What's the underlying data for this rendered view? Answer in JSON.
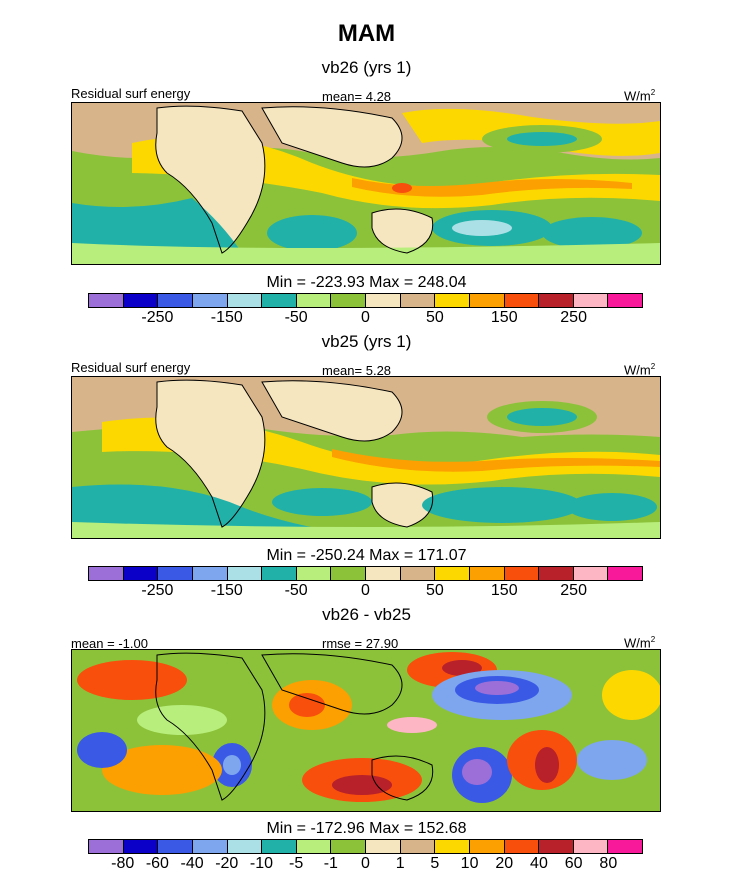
{
  "title": "MAM",
  "panels": [
    {
      "title": "vb26 (yrs 1)",
      "left_label": "Residual surf energy",
      "center_label": "mean=   4.28",
      "units": "W/m",
      "units_sup": "2",
      "minmax": "Min = -223.93 Max = 248.04"
    },
    {
      "title": "vb25 (yrs 1)",
      "left_label": "Residual surf energy",
      "center_label": "mean=   5.28",
      "units": "W/m",
      "units_sup": "2",
      "minmax": "Min = -250.24 Max = 171.07"
    },
    {
      "title": "vb26 - vb25",
      "left_label": "mean =  -1.00",
      "center_label": "rmse =  27.90",
      "units": "W/m",
      "units_sup": "2",
      "minmax": "Min = -172.96 Max = 152.68"
    }
  ],
  "colorbar": {
    "colors": [
      "#9c6fd8",
      "#0a00c8",
      "#3a5ae6",
      "#7ea6ee",
      "#abe0e6",
      "#22b1a8",
      "#b8ee7c",
      "#8cc23a",
      "#f5e6c0",
      "#d7b48a",
      "#fdd800",
      "#fba000",
      "#f8500c",
      "#b8202a",
      "#fdb6c4",
      "#f8189a"
    ],
    "ticks_abs": [
      "-250",
      "-150",
      "-50",
      "0",
      "50",
      "150",
      "250"
    ],
    "ticks_diff": [
      "-80",
      "-60",
      "-40",
      "-20",
      "-10",
      "-5",
      "-1",
      "0",
      "1",
      "5",
      "10",
      "20",
      "40",
      "60",
      "80"
    ]
  }
}
